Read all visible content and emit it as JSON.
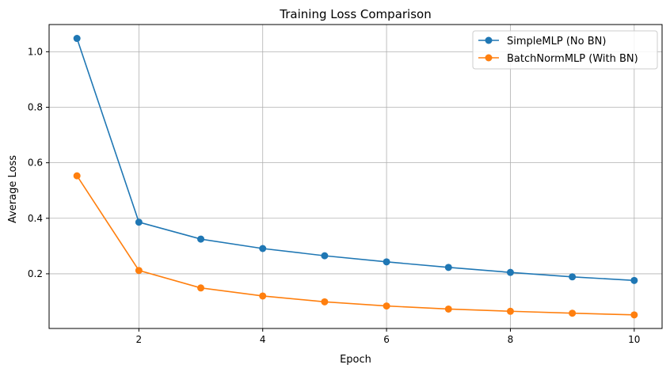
{
  "chart_data": {
    "type": "line",
    "title": "Training Loss Comparison",
    "xlabel": "Epoch",
    "ylabel": "Average Loss",
    "x": [
      1,
      2,
      3,
      4,
      5,
      6,
      7,
      8,
      9,
      10
    ],
    "xlim": [
      0.55,
      10.45
    ],
    "ylim": [
      0.003,
      1.098
    ],
    "xticks": [
      2,
      4,
      6,
      8,
      10
    ],
    "yticks": [
      0.2,
      0.4,
      0.6,
      0.8,
      1.0
    ],
    "xtick_labels": [
      "2",
      "4",
      "6",
      "8",
      "10"
    ],
    "ytick_labels": [
      "0.2",
      "0.4",
      "0.6",
      "0.8",
      "1.0"
    ],
    "grid": true,
    "legend_position": "top-right",
    "series": [
      {
        "name": "SimpleMLP (No BN)",
        "color": "#1f77b4",
        "values": [
          1.048,
          0.386,
          0.325,
          0.291,
          0.265,
          0.243,
          0.223,
          0.205,
          0.189,
          0.176
        ]
      },
      {
        "name": "BatchNormMLP (With BN)",
        "color": "#ff7f0e",
        "values": [
          0.553,
          0.212,
          0.149,
          0.12,
          0.099,
          0.084,
          0.073,
          0.065,
          0.058,
          0.052
        ]
      }
    ]
  }
}
